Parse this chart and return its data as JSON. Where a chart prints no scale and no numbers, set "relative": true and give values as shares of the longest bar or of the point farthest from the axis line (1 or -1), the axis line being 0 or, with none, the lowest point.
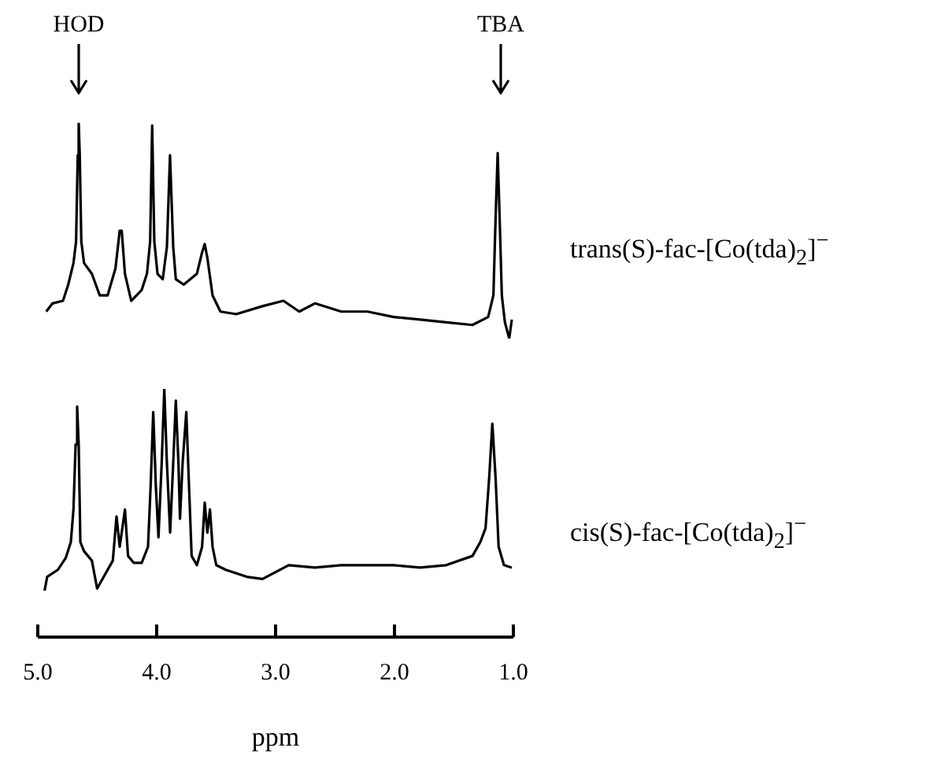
{
  "chart_data": [
    {
      "type": "line",
      "relative": true,
      "tick_labels": false,
      "xlim": [
        5.0,
        1.0
      ],
      "annotations": [
        "HOD",
        "TBA"
      ],
      "x": [
        4.929,
        4.876,
        4.788,
        4.744,
        4.7,
        4.678,
        4.664,
        4.656,
        4.647,
        4.634,
        4.611,
        4.545,
        4.479,
        4.413,
        4.347,
        4.311,
        4.294,
        4.267,
        4.214,
        4.126,
        4.082,
        4.055,
        4.038,
        4.02,
        3.993,
        3.949,
        3.914,
        3.888,
        3.861,
        3.839,
        3.773,
        3.662,
        3.618,
        3.596,
        3.574,
        3.53,
        3.464,
        3.331,
        3.11,
        2.934,
        2.801,
        2.669,
        2.448,
        2.227,
        2.007,
        1.786,
        1.565,
        1.344,
        1.212,
        1.168,
        1.15,
        1.132,
        1.115,
        1.097,
        1.071,
        1.035,
        1.013
      ],
      "series": [
        {
          "name": "trans(S)-fac-[Co(tda)$_{2}$]$^{−}$",
          "color": "#000000",
          "values": [
            0.125,
            0.163,
            0.175,
            0.25,
            0.35,
            0.45,
            0.85,
            1,
            0.85,
            0.45,
            0.35,
            0.3,
            0.2,
            0.2,
            0.325,
            0.5,
            0.5,
            0.3,
            0.175,
            0.225,
            0.3,
            0.45,
            0.988,
            0.45,
            0.3,
            0.275,
            0.425,
            0.85,
            0.425,
            0.275,
            0.25,
            0.3,
            0.4,
            0.438,
            0.375,
            0.2,
            0.125,
            0.113,
            0.15,
            0.175,
            0.125,
            0.163,
            0.125,
            0.125,
            0.1,
            0.088,
            0.075,
            0.063,
            0.1,
            0.2,
            0.55,
            0.86,
            0.55,
            0.2,
            0.075,
            0,
            0.088
          ]
        }
      ]
    },
    {
      "type": "line",
      "relative": true,
      "tick_labels": "x",
      "xlabel": "ppm",
      "xlim": [
        5.0,
        1.0
      ],
      "xticks": [
        {
          "value": 5.0,
          "label": "5.0"
        },
        {
          "value": 4.0,
          "label": "4.0"
        },
        {
          "value": 3.0,
          "label": "3.0"
        },
        {
          "value": 2.0,
          "label": "2.0"
        },
        {
          "value": 1.0,
          "label": "1.0"
        }
      ],
      "x": [
        4.943,
        4.921,
        4.832,
        4.766,
        4.722,
        4.7,
        4.682,
        4.669,
        4.656,
        4.642,
        4.611,
        4.545,
        4.501,
        4.435,
        4.369,
        4.338,
        4.311,
        4.267,
        4.241,
        4.192,
        4.126,
        4.073,
        4.051,
        4.029,
        4.007,
        3.985,
        3.958,
        3.936,
        3.914,
        3.887,
        3.861,
        3.839,
        3.817,
        3.804,
        3.782,
        3.751,
        3.728,
        3.706,
        3.662,
        3.618,
        3.596,
        3.574,
        3.552,
        3.53,
        3.499,
        3.419,
        3.243,
        3.11,
        2.89,
        2.669,
        2.448,
        2.227,
        2.007,
        1.786,
        1.565,
        1.344,
        1.278,
        1.234,
        1.203,
        1.177,
        1.15,
        1.124,
        1.079,
        1.013
      ],
      "series": [
        {
          "name": "cis(S)-fac-[Co(tda)$_{2}$]$^{−}$",
          "color": "#000000",
          "values": [
            0.187,
            0.243,
            0.271,
            0.318,
            0.383,
            0.514,
            0.776,
            0.929,
            0.776,
            0.383,
            0.346,
            0.308,
            0.196,
            0.252,
            0.308,
            0.486,
            0.364,
            0.514,
            0.327,
            0.299,
            0.299,
            0.364,
            0.607,
            0.907,
            0.607,
            0.402,
            0.701,
            1,
            0.701,
            0.421,
            0.701,
            0.953,
            0.701,
            0.477,
            0.701,
            0.907,
            0.607,
            0.327,
            0.29,
            0.364,
            0.542,
            0.421,
            0.514,
            0.364,
            0.29,
            0.271,
            0.243,
            0.234,
            0.29,
            0.28,
            0.29,
            0.29,
            0.29,
            0.28,
            0.29,
            0.327,
            0.383,
            0.439,
            0.645,
            0.86,
            0.645,
            0.364,
            0.29,
            0.28
          ]
        }
      ]
    }
  ]
}
